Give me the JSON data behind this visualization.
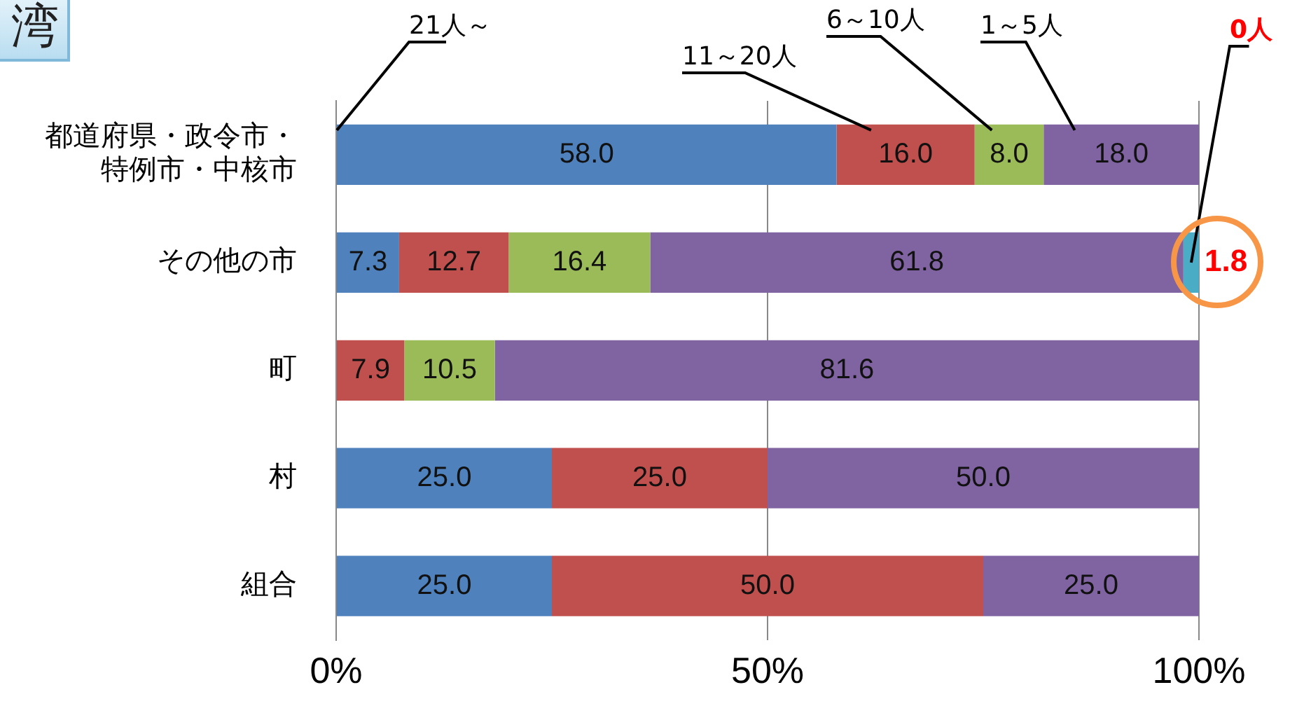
{
  "chart_data": {
    "type": "bar",
    "orientation": "horizontal",
    "stacked": true,
    "title": "湾",
    "categories": [
      "都道府県・政令市・特例市・中核市",
      "その他の市",
      "町",
      "村",
      "組合"
    ],
    "series": [
      {
        "name": "21人～",
        "color": "#4f81bd",
        "values": [
          58.0,
          7.3,
          0,
          25.0,
          25.0
        ],
        "value_labels": [
          "58.0",
          "7.3",
          null,
          "25.0",
          "25.0"
        ]
      },
      {
        "name": "11～20人",
        "color": "#c0504d",
        "values": [
          16.0,
          12.7,
          7.9,
          25.0,
          50.0
        ],
        "value_labels": [
          "16.0",
          "12.7",
          "7.9",
          "25.0",
          "50.0"
        ]
      },
      {
        "name": "6～10人",
        "color": "#9bbb59",
        "values": [
          8.0,
          16.4,
          10.5,
          0,
          0
        ],
        "value_labels": [
          "8.0",
          "16.4",
          "10.5",
          null,
          null
        ]
      },
      {
        "name": "1～5人",
        "color": "#8064a2",
        "values": [
          18.0,
          61.8,
          81.6,
          50.0,
          25.0
        ],
        "value_labels": [
          "18.0",
          "61.8",
          "81.6",
          "50.0",
          "25.0"
        ]
      },
      {
        "name": "0人",
        "color": "#4bacc6",
        "values": [
          0,
          1.8,
          0,
          0,
          0
        ],
        "value_labels": [
          null,
          "1.8",
          null,
          null,
          null
        ]
      }
    ],
    "xlim": [
      0,
      100
    ],
    "xticks": [
      {
        "value": 0,
        "label": "0%"
      },
      {
        "value": 50,
        "label": "50%"
      },
      {
        "value": 100,
        "label": "100%"
      }
    ],
    "grid": "x",
    "legend": false
  }
}
